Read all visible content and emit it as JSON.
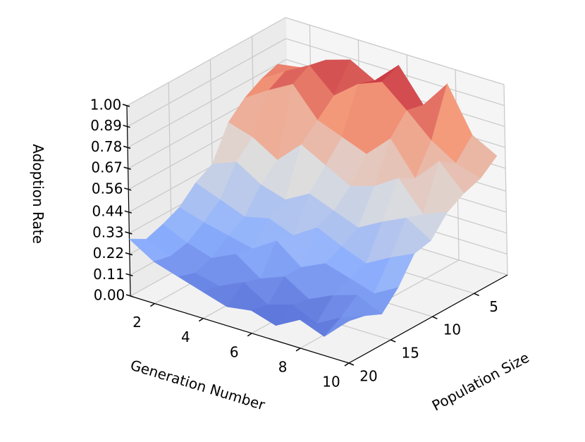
{
  "chart_data": {
    "type": "surface3d",
    "x_label": "Generation Number",
    "y_label": "Population Size",
    "z_label": "Adoption Rate",
    "x": [
      1,
      2,
      3,
      4,
      5,
      6,
      7,
      8,
      9,
      10
    ],
    "y": [
      2,
      4,
      6,
      8,
      10,
      12,
      14,
      16,
      18,
      20
    ],
    "z": [
      [
        0.78,
        0.8,
        0.88,
        0.92,
        0.85,
        0.97,
        0.8,
        0.95,
        0.72,
        0.65
      ],
      [
        0.75,
        0.83,
        0.9,
        0.78,
        0.88,
        0.93,
        0.82,
        0.7,
        0.62,
        0.58
      ],
      [
        0.7,
        0.78,
        0.85,
        0.7,
        0.65,
        0.6,
        0.72,
        0.55,
        0.68,
        0.55
      ],
      [
        0.62,
        0.58,
        0.5,
        0.62,
        0.55,
        0.48,
        0.52,
        0.6,
        0.45,
        0.5
      ],
      [
        0.45,
        0.5,
        0.42,
        0.38,
        0.45,
        0.4,
        0.35,
        0.42,
        0.48,
        0.4
      ],
      [
        0.4,
        0.35,
        0.3,
        0.33,
        0.28,
        0.36,
        0.3,
        0.25,
        0.32,
        0.38
      ],
      [
        0.32,
        0.28,
        0.25,
        0.22,
        0.3,
        0.2,
        0.26,
        0.22,
        0.18,
        0.25
      ],
      [
        0.28,
        0.22,
        0.18,
        0.24,
        0.15,
        0.2,
        0.12,
        0.18,
        0.22,
        0.16
      ],
      [
        0.25,
        0.2,
        0.15,
        0.12,
        0.18,
        0.1,
        0.14,
        0.08,
        0.15,
        0.2
      ],
      [
        0.3,
        0.22,
        0.18,
        0.14,
        0.1,
        0.12,
        0.08,
        0.15,
        0.1,
        0.22
      ]
    ],
    "colormap": "coolwarm",
    "xlim": [
      1,
      10
    ],
    "ylim": [
      1,
      20
    ],
    "zlim": [
      0,
      1
    ],
    "xticks": [
      2,
      4,
      6,
      8,
      10
    ],
    "yticks": [
      5,
      10,
      15,
      20
    ],
    "zticks": [
      {
        "value": 0,
        "label": "0.00"
      },
      0.11,
      0.22,
      0.33,
      0.44,
      0.56,
      0.67,
      0.78,
      0.89,
      {
        "value": 1,
        "label": "1.00"
      }
    ],
    "grid": true
  }
}
